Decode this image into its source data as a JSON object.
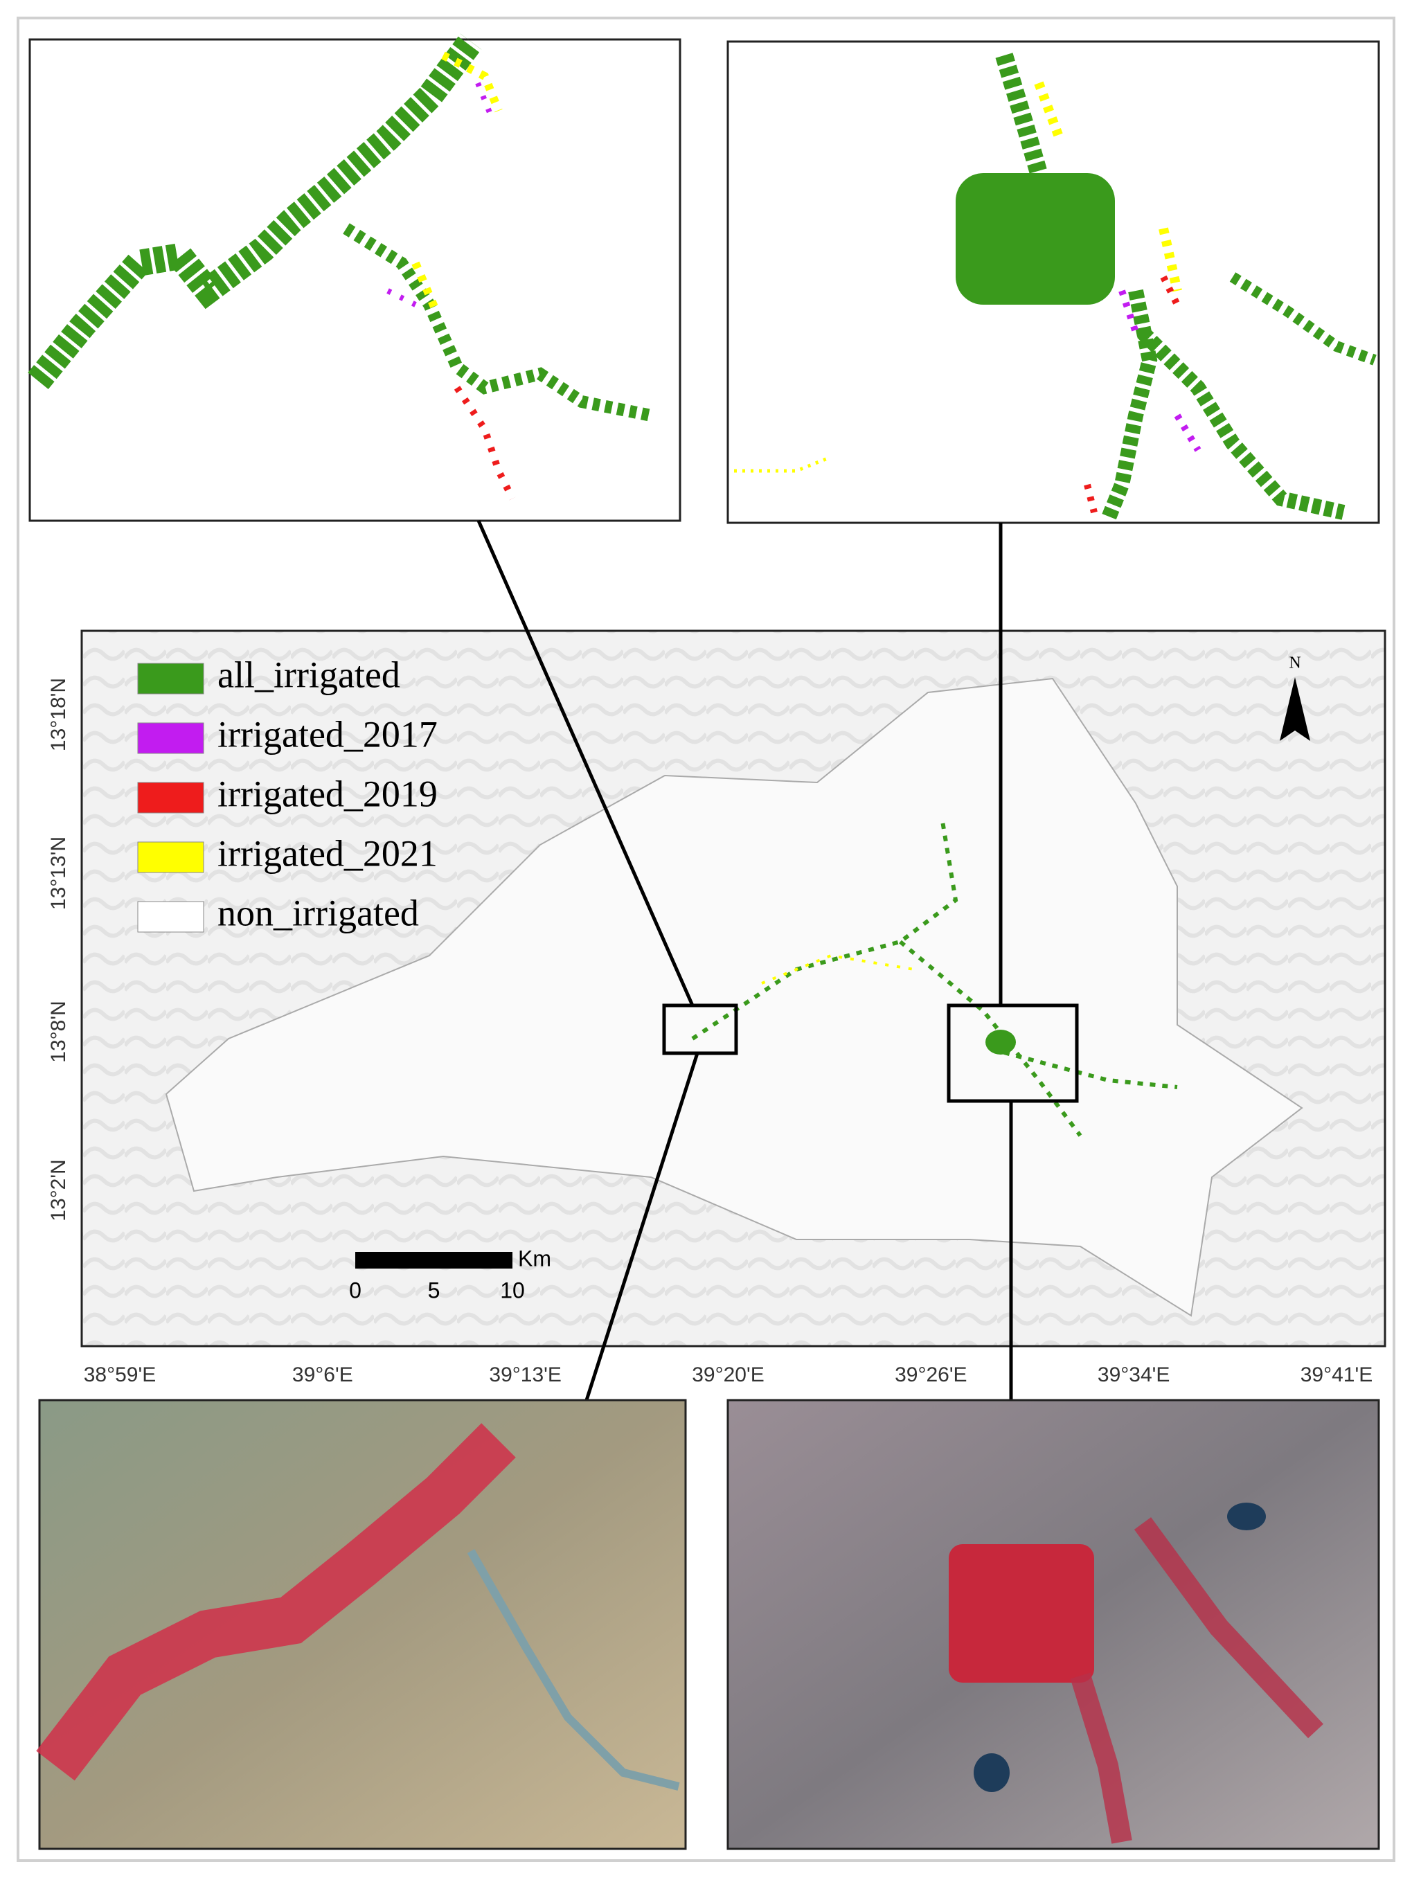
{
  "legend": [
    {
      "label": "all_irrigated",
      "color": "#3a9a1c"
    },
    {
      "label": "irrigated_2017",
      "color": "#c21cf0"
    },
    {
      "label": "irrigated_2019",
      "color": "#ee1c1c"
    },
    {
      "label": "irrigated_2021",
      "color": "#ffff00"
    },
    {
      "label": "non_irrigated",
      "color": "#ffffff"
    }
  ],
  "lat_labels": [
    "13°18'N",
    "13°13'N",
    "13°8'N",
    "13°2'N"
  ],
  "lon_labels": [
    "38°59'E",
    "39°6'E",
    "39°13'E",
    "39°20'E",
    "39°26'E",
    "39°34'E",
    "39°41'E"
  ],
  "scale_bar": {
    "unit": "Km",
    "ticks": [
      0,
      5,
      10
    ]
  },
  "north": "N"
}
